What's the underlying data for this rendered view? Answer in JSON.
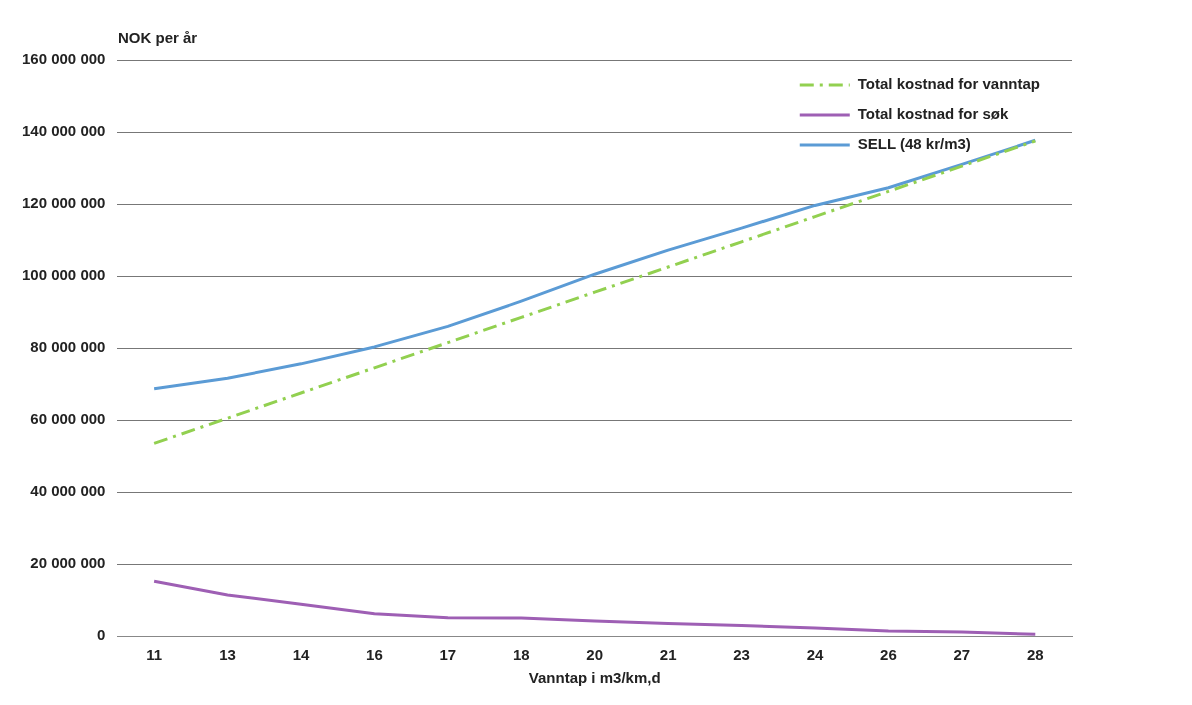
{
  "chart_data": {
    "type": "line",
    "ylabel": "NOK per år",
    "xlabel": "Vanntap i m3/km,d",
    "categories": [
      "11",
      "13",
      "14",
      "16",
      "17",
      "18",
      "20",
      "21",
      "23",
      "24",
      "26",
      "27",
      "28"
    ],
    "series": [
      {
        "name": "Total kostnad for vanntap",
        "color": "#92d050",
        "line_style": "dashed",
        "values": [
          53500000,
          60500000,
          67500000,
          74500000,
          81500000,
          88500000,
          95500000,
          102500000,
          109500000,
          116500000,
          123500000,
          130500000,
          137500000
        ]
      },
      {
        "name": "Total kostnad for søk",
        "color": "#9e5fb4",
        "line_style": "solid",
        "values": [
          15200000,
          11400000,
          8800000,
          6200000,
          5100000,
          5000000,
          4200000,
          3500000,
          2900000,
          2200000,
          1400000,
          1100000,
          500000
        ]
      },
      {
        "name": "SELL (48 kr/m3)",
        "color": "#5b9bd5",
        "line_style": "solid",
        "values": [
          68700000,
          71600000,
          75600000,
          80300000,
          86000000,
          93000000,
          100500000,
          107200000,
          113300000,
          119600000,
          124500000,
          131000000,
          137700000
        ]
      }
    ],
    "ylim": [
      0,
      160000000
    ],
    "yticks": [
      {
        "value": 0,
        "label": "0"
      },
      {
        "value": 20000000,
        "label": "20 000 000"
      },
      {
        "value": 40000000,
        "label": "40 000 000"
      },
      {
        "value": 60000000,
        "label": "60 000 000"
      },
      {
        "value": 80000000,
        "label": "80 000 000"
      },
      {
        "value": 100000000,
        "label": "100 000 000"
      },
      {
        "value": 120000000,
        "label": "120 000 000"
      },
      {
        "value": 140000000,
        "label": "140 000 000"
      },
      {
        "value": 160000000,
        "label": "160 000 000"
      }
    ],
    "grid": "y",
    "legend": "top right",
    "marker": "none"
  }
}
